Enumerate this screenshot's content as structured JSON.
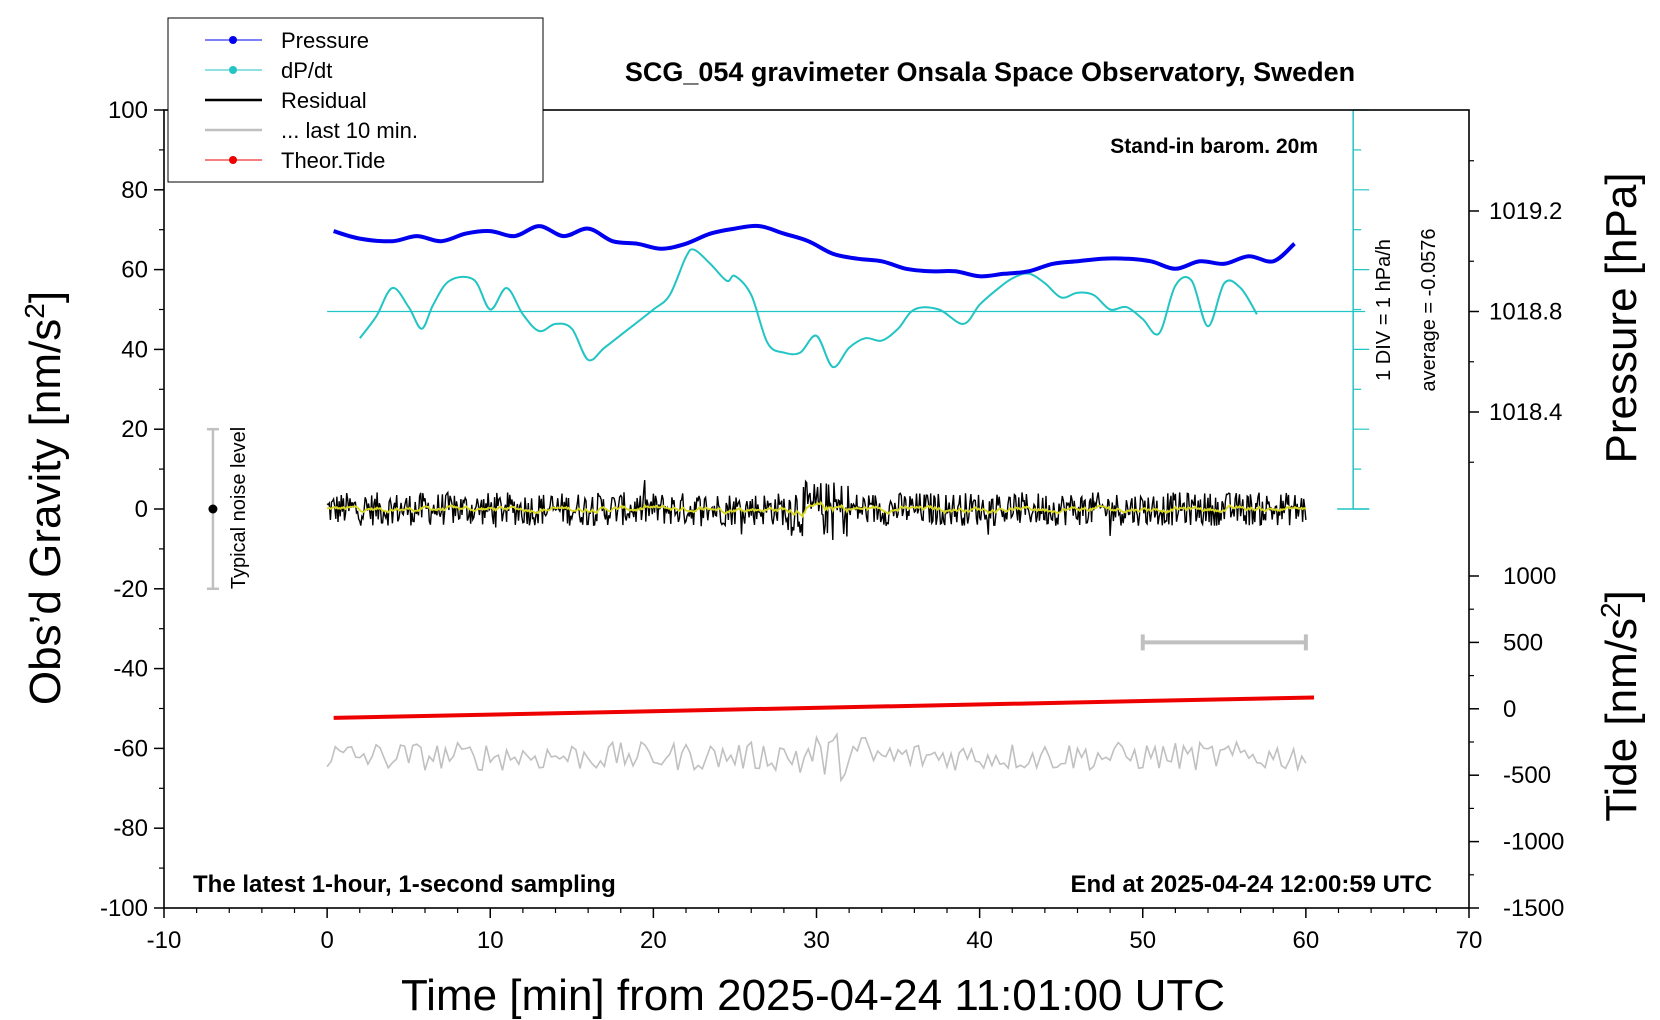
{
  "chart_data": {
    "type": "line",
    "title": "SCG_054 gravimeter Onsala Space Observatory, Sweden",
    "xlabel": "Time [min] from 2025-04-24 11:01:00 UTC",
    "ylabel_left": "Obs’d Gravity [nm/s",
    "ylabel_left_sup": "2",
    "ylabel_left_end": "]",
    "ylabel_right_pressure": "Pressure [hPa]",
    "ylabel_right_tide": "Tide [nm/s",
    "ylabel_right_tide_sup": "2",
    "ylabel_right_tide_end": "]",
    "xlim": [
      -10,
      70
    ],
    "ylim": [
      -100,
      100
    ],
    "x_ticks": [
      "-10",
      "0",
      "10",
      "20",
      "30",
      "40",
      "50",
      "60",
      "70"
    ],
    "y_ticks": [
      "-100",
      "-80",
      "-60",
      "-40",
      "-20",
      "0",
      "20",
      "40",
      "60",
      "80",
      "100"
    ],
    "pressure_ticks": [
      "1019.2",
      "1018.8",
      "1018.4"
    ],
    "tide_ticks": [
      "1000",
      "500",
      "0",
      "-500",
      "-1000",
      "-1500"
    ],
    "annotations": {
      "barometer": "Stand-in barom. 20m",
      "div_note": "1 DIV = 1 hPa/h",
      "average_note": "average = -0.0576",
      "noise_note": "Typical noise level",
      "bottom_left": "The latest 1-hour, 1-second sampling",
      "bottom_right": "End at 2025-04-24 12:00:59 UTC"
    },
    "legend": {
      "position": "top-left",
      "entries": [
        "Pressure",
        "dP/dt",
        "Residual",
        "... last 10 min.",
        "Theor.Tide"
      ]
    },
    "colors": {
      "pressure": "#0000ee",
      "dpdt": "#22c4c4",
      "residual": "#000000",
      "last10": "#c0c0c0",
      "tide": "#ee0000",
      "smooth": "#d8d820"
    },
    "series": [
      {
        "name": "Pressure",
        "unit": "hPa",
        "x": [
          0.4,
          2,
          4,
          5.5,
          7,
          8.5,
          10,
          11.5,
          13,
          14.5,
          16,
          17.5,
          19,
          20.5,
          22,
          23.5,
          25,
          26.5,
          28,
          29.5,
          31,
          32.5,
          34,
          35.5,
          37,
          38.5,
          40,
          41.5,
          43,
          44.5,
          46,
          47.5,
          49,
          50.5,
          52,
          53.5,
          55,
          56.5,
          58,
          59.3
        ],
        "y": [
          1019.12,
          1019.09,
          1019.08,
          1019.1,
          1019.08,
          1019.11,
          1019.12,
          1019.1,
          1019.14,
          1019.1,
          1019.13,
          1019.08,
          1019.07,
          1019.05,
          1019.07,
          1019.11,
          1019.13,
          1019.14,
          1019.11,
          1019.08,
          1019.03,
          1019.01,
          1019.0,
          1018.97,
          1018.96,
          1018.96,
          1018.94,
          1018.95,
          1018.96,
          1018.99,
          1019.0,
          1019.01,
          1019.01,
          1019.0,
          1018.97,
          1019.0,
          1018.99,
          1019.02,
          1019.0,
          1019.07
        ]
      },
      {
        "name": "dP/dt",
        "unit": "hPa/h",
        "x": [
          2,
          3,
          4,
          5,
          5.8,
          6.5,
          7.5,
          9,
          10,
          11,
          12,
          13,
          14,
          15,
          16,
          17,
          18.5,
          20,
          21,
          22,
          22.5,
          23.5,
          24.5,
          25,
          26,
          27,
          28,
          29,
          30,
          31,
          32,
          33,
          34,
          35,
          36,
          37.5,
          39,
          40,
          41,
          42,
          43,
          44,
          45,
          46,
          47,
          48,
          49,
          50,
          51,
          52,
          53,
          54,
          55,
          56,
          57
        ],
        "y": [
          -0.6,
          -0.15,
          0.45,
          0.05,
          -0.4,
          0.1,
          0.6,
          0.62,
          0.0,
          0.45,
          -0.1,
          -0.45,
          -0.3,
          -0.4,
          -1.05,
          -0.8,
          -0.4,
          0.0,
          0.3,
          1.1,
          1.25,
          0.95,
          0.6,
          0.7,
          0.3,
          -0.7,
          -0.9,
          -0.9,
          -0.55,
          -1.2,
          -0.8,
          -0.6,
          -0.65,
          -0.4,
          0.0,
          0.0,
          -0.3,
          0.1,
          0.4,
          0.65,
          0.75,
          0.55,
          0.25,
          0.35,
          0.3,
          0.0,
          0.05,
          -0.2,
          -0.5,
          0.5,
          0.6,
          -0.35,
          0.55,
          0.45,
          -0.1
        ]
      },
      {
        "name": "Residual",
        "unit": "nm/s2",
        "x": [
          0,
          60
        ],
        "y": [
          0,
          0
        ],
        "peak_to_peak": 14
      },
      {
        "name": "Theor.Tide",
        "unit": "nm/s2",
        "x": [
          0.4,
          60.5
        ],
        "y": [
          -68,
          85
        ]
      }
    ],
    "noise_bar": {
      "x": -7,
      "ymin": -20,
      "ymax": 20
    },
    "last10_bar": {
      "x_start": 50,
      "x_end": 60
    },
    "pressure_zero_line": 1018.8,
    "dpdt_axis_x": 62.9
  }
}
